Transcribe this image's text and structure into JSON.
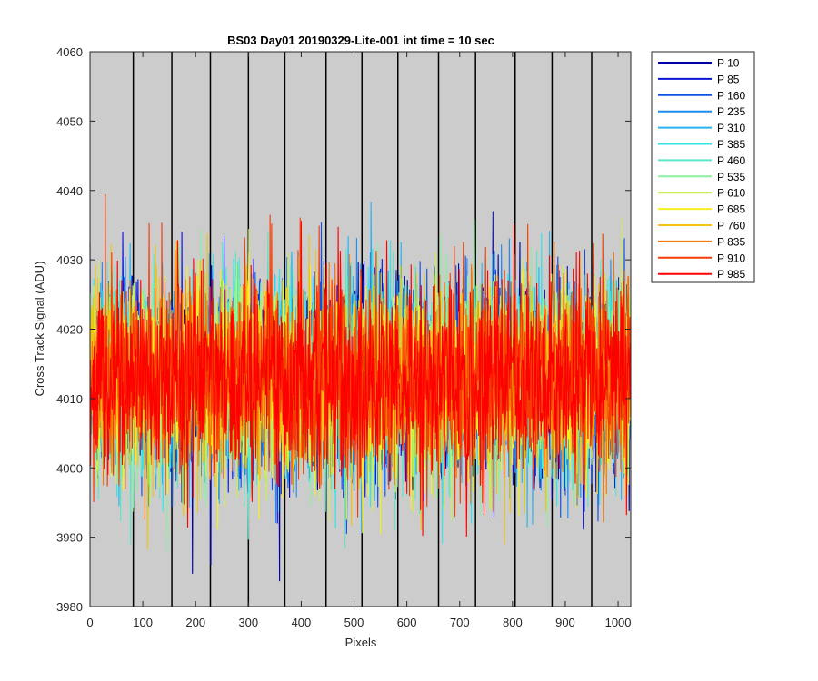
{
  "chart_data": {
    "type": "line",
    "title": "BS03 Day01 20190329-Lite-001 int time = 10 sec",
    "xlabel": "Pixels",
    "ylabel": "Cross Track Signal (ADU)",
    "xlim": [
      0,
      1024
    ],
    "ylim": [
      3980,
      4060
    ],
    "x_ticks": [
      0,
      100,
      200,
      300,
      400,
      500,
      600,
      700,
      800,
      900,
      1000
    ],
    "y_ticks": [
      3980,
      3990,
      4000,
      4010,
      4020,
      4030,
      4040,
      4050,
      4060
    ],
    "background_color": "#cccccc",
    "grid": false,
    "legend_position": "outside-right",
    "segment_boundaries": [
      82,
      155,
      228,
      300,
      369,
      447,
      515,
      583,
      660,
      730,
      805,
      875,
      950
    ],
    "noise_mean": 4013,
    "noise_std": 7,
    "series": [
      {
        "name": "P 10",
        "color": "#0000a8"
      },
      {
        "name": "P 85",
        "color": "#0a14d8"
      },
      {
        "name": "P 160",
        "color": "#0f50e6"
      },
      {
        "name": "P 235",
        "color": "#1e8cf0"
      },
      {
        "name": "P 310",
        "color": "#28b4f0"
      },
      {
        "name": "P 385",
        "color": "#30e6e6"
      },
      {
        "name": "P 460",
        "color": "#5ae6c8"
      },
      {
        "name": "P 535",
        "color": "#8cf0a0"
      },
      {
        "name": "P 610",
        "color": "#c8f050"
      },
      {
        "name": "P 685",
        "color": "#f5f01e"
      },
      {
        "name": "P 760",
        "color": "#f0c40f"
      },
      {
        "name": "P 835",
        "color": "#f5780a"
      },
      {
        "name": "P 910",
        "color": "#f53c05"
      },
      {
        "name": "P 985",
        "color": "#ff0000"
      }
    ]
  }
}
